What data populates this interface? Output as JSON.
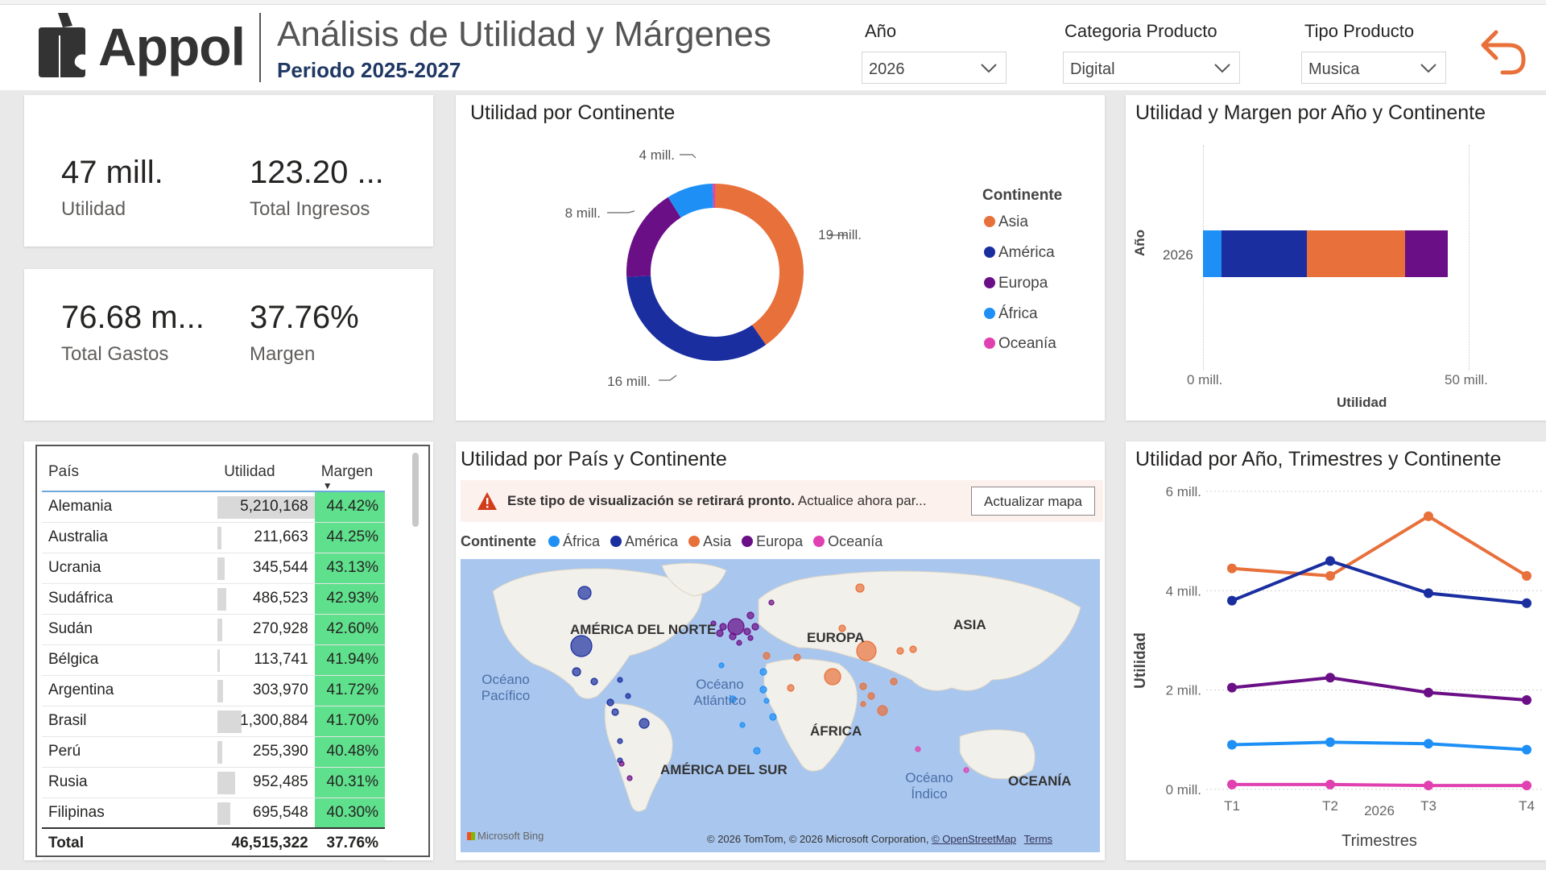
{
  "header": {
    "logo_text": "Appol",
    "title": "Análisis de Utilidad y Márgenes",
    "subtitle": "Periodo 2025-2027",
    "slicers": [
      {
        "label": "Año",
        "value": "2026"
      },
      {
        "label": "Categoria Producto",
        "value": "Digital"
      },
      {
        "label": "Tipo Producto",
        "value": "Musica"
      }
    ],
    "back_icon": "undo-arrow-icon"
  },
  "kpis": [
    {
      "value": "47 mill.",
      "label": "Utilidad"
    },
    {
      "value": "123.20 ...",
      "label": "Total Ingresos"
    },
    {
      "value": "76.68 m...",
      "label": "Total Gastos"
    },
    {
      "value": "37.76%",
      "label": "Margen"
    }
  ],
  "table": {
    "columns": [
      "País",
      "Utilidad",
      "Margen"
    ],
    "rows": [
      {
        "pais": "Alemania",
        "utilidad": "5,210,168",
        "util_value": 5210168,
        "margen": "44.42%"
      },
      {
        "pais": "Australia",
        "utilidad": "211,663",
        "util_value": 211663,
        "margen": "44.25%"
      },
      {
        "pais": "Ucrania",
        "utilidad": "345,544",
        "util_value": 345544,
        "margen": "43.13%"
      },
      {
        "pais": "Sudáfrica",
        "utilidad": "486,523",
        "util_value": 486523,
        "margen": "42.93%"
      },
      {
        "pais": "Sudán",
        "utilidad": "270,928",
        "util_value": 270928,
        "margen": "42.60%"
      },
      {
        "pais": "Bélgica",
        "utilidad": "113,741",
        "util_value": 113741,
        "margen": "41.94%"
      },
      {
        "pais": "Argentina",
        "utilidad": "303,970",
        "util_value": 303970,
        "margen": "41.72%"
      },
      {
        "pais": "Brasil",
        "utilidad": "1,300,884",
        "util_value": 1300884,
        "margen": "41.70%"
      },
      {
        "pais": "Perú",
        "utilidad": "255,390",
        "util_value": 255390,
        "margen": "40.48%"
      },
      {
        "pais": "Rusia",
        "utilidad": "952,485",
        "util_value": 952485,
        "margen": "40.31%"
      },
      {
        "pais": "Filipinas",
        "utilidad": "695,548",
        "util_value": 695548,
        "margen": "40.30%"
      }
    ],
    "total": {
      "label": "Total",
      "utilidad": "46,515,322",
      "margen": "37.76%"
    }
  },
  "colors": {
    "Asia": "#e8703a",
    "America": "#1a2ea0",
    "Europa": "#6b0f87",
    "Africa": "#1e90f5",
    "Oceania": "#e040b0"
  },
  "donut": {
    "title": "Utilidad por Continente",
    "legend_title": "Continente",
    "labels": [
      "19 mill.",
      "16 mill.",
      "8 mill.",
      "4 mill."
    ]
  },
  "stacked": {
    "title": "Utilidad y Margen por Año y Continente",
    "category": "2026",
    "y_axis_title": "Año",
    "x_axis_title": "Utilidad",
    "x_ticks": [
      "0 mill.",
      "50 mill."
    ]
  },
  "map": {
    "title": "Utilidad por País y Continente",
    "warning_bold": "Este tipo de visualización se retirará pronto.",
    "warning_text": "Actualice ahora par...",
    "update_button": "Actualizar mapa",
    "legend_title": "Continente",
    "legend": [
      "África",
      "América",
      "Asia",
      "Europa",
      "Oceanía"
    ],
    "regions": [
      "AMÉRICA DEL NORTE",
      "EUROPA",
      "ASIA",
      "ÁFRICA",
      "AMÉRICA DEL SUR",
      "OCEANÍA"
    ],
    "oceans": [
      "Océano Pacífico",
      "Océano Atlántico",
      "Océano Índico"
    ],
    "bing": "Microsoft Bing",
    "copyright": "© 2026 TomTom, © 2026 Microsoft Corporation,",
    "osm_link": "© OpenStreetMap",
    "terms_link": "Terms"
  },
  "chart_data": [
    {
      "type": "pie",
      "title": "Utilidad por Continente",
      "categories": [
        "Asia",
        "América",
        "Europa",
        "África",
        "Oceanía"
      ],
      "values": [
        19,
        16,
        8,
        4,
        0.2
      ],
      "unit": "mill.",
      "legend": "right"
    },
    {
      "type": "bar",
      "title": "Utilidad y Margen por Año y Continente",
      "categories": [
        "2026"
      ],
      "series": [
        {
          "name": "África",
          "values": [
            3.5
          ]
        },
        {
          "name": "América",
          "values": [
            16
          ]
        },
        {
          "name": "Asia",
          "values": [
            18.5
          ]
        },
        {
          "name": "Europa",
          "values": [
            8
          ]
        }
      ],
      "xlabel": "Utilidad",
      "ylabel": "Año",
      "xlim": [
        0,
        50
      ]
    },
    {
      "type": "line",
      "title": "Utilidad por Año, Trimestres y Continente",
      "x": [
        "T1",
        "T2",
        "T3",
        "T4"
      ],
      "x_group": "2026",
      "series": [
        {
          "name": "Asia",
          "values": [
            4.45,
            4.3,
            5.5,
            4.3
          ]
        },
        {
          "name": "América",
          "values": [
            3.8,
            4.6,
            3.95,
            3.75
          ]
        },
        {
          "name": "Europa",
          "values": [
            2.05,
            2.25,
            1.95,
            1.8
          ]
        },
        {
          "name": "África",
          "values": [
            0.9,
            0.95,
            0.92,
            0.8
          ]
        },
        {
          "name": "Oceanía",
          "values": [
            0.1,
            0.1,
            0.08,
            0.08
          ]
        }
      ],
      "xlabel": "Trimestres",
      "ylabel": "Utilidad",
      "ylim": [
        0,
        6
      ],
      "y_ticks": [
        "0 mill.",
        "2 mill.",
        "4 mill.",
        "6 mill."
      ]
    }
  ]
}
